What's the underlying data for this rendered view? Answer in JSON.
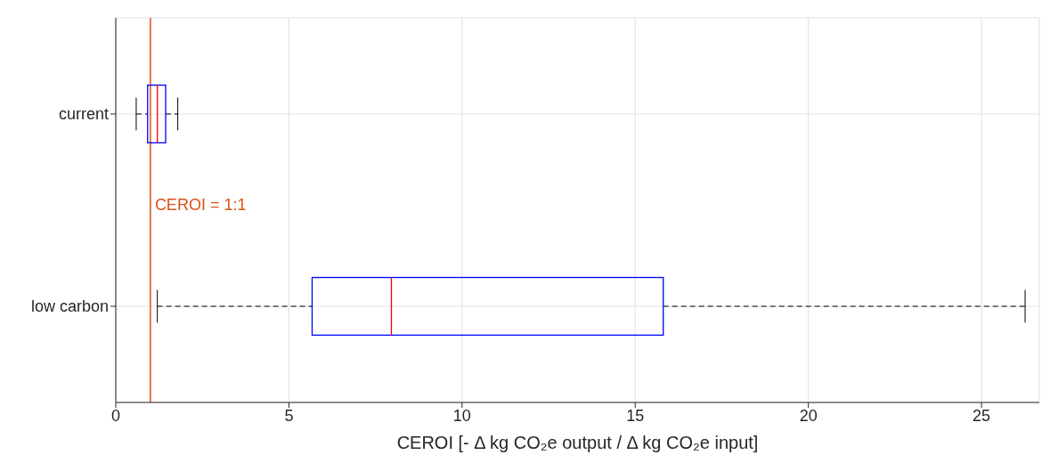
{
  "chart_data": {
    "type": "box",
    "orientation": "horizontal",
    "categories": [
      "current",
      "low carbon"
    ],
    "boxes": [
      {
        "low": 0.59,
        "q1": 0.92,
        "median": 1.2,
        "q3": 1.44,
        "high": 1.79
      },
      {
        "low": 1.2,
        "q1": 5.67,
        "median": 7.96,
        "q3": 15.81,
        "high": 26.26
      }
    ],
    "color": "#0000ff",
    "xlabel": "CEROI [- Δ kg CO₂e output / Δ kg CO₂e input]",
    "xlim": [
      0,
      26.67
    ],
    "xticks": [
      0,
      5,
      10,
      15,
      20,
      25
    ],
    "grid": true,
    "line_style": "dashed",
    "ref_lines": [
      {
        "axis": "x",
        "value": 1,
        "label": "CEROI = 1:1",
        "color": "#d95319"
      }
    ]
  }
}
